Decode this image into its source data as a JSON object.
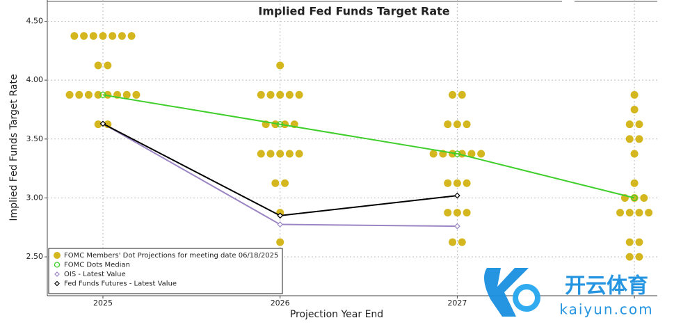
{
  "chart_data": {
    "type": "dotplot",
    "title": "Implied Fed Funds Target Rate",
    "x_label": "Projection Year End",
    "y_label": "Implied Fed Funds Target Rate",
    "categories": [
      "2025",
      "2026",
      "2027",
      null
    ],
    "ylim": [
      2.17,
      4.68
    ],
    "yticks": [
      {
        "value": 2.5,
        "label": "2.50"
      },
      {
        "value": 3.0,
        "label": "3.00"
      },
      {
        "value": 3.5,
        "label": "3.50"
      },
      {
        "value": 4.0,
        "label": "4.00"
      },
      {
        "value": 4.5,
        "label": "4.50"
      }
    ],
    "grid": true,
    "legend": "bottom-left",
    "series": [
      {
        "name": "FOMC Members' Dot Projections for meeting date 06/18/2025",
        "color": "#d4b61e",
        "marker": "dot",
        "values": [
          [
            4.375,
            4.375,
            4.375,
            4.375,
            4.375,
            4.375,
            4.375,
            4.125,
            4.125,
            3.875,
            3.875,
            3.875,
            3.875,
            3.875,
            3.875,
            3.875,
            3.875,
            3.625,
            3.625
          ],
          [
            4.125,
            3.875,
            3.875,
            3.875,
            3.875,
            3.875,
            3.625,
            3.625,
            3.625,
            3.625,
            3.375,
            3.375,
            3.375,
            3.375,
            3.375,
            3.125,
            3.125,
            2.875,
            2.625
          ],
          [
            3.875,
            3.875,
            3.625,
            3.625,
            3.625,
            3.375,
            3.375,
            3.375,
            3.375,
            3.375,
            3.375,
            3.125,
            3.125,
            3.125,
            2.875,
            2.875,
            2.875,
            2.625,
            2.625
          ],
          [
            3.875,
            3.75,
            3.625,
            3.625,
            3.5,
            3.5,
            3.375,
            3.125,
            3.0,
            3.0,
            3.0,
            2.875,
            2.875,
            2.875,
            2.875,
            2.625,
            2.625,
            2.5,
            2.5
          ]
        ]
      },
      {
        "name": "FOMC Dots Median",
        "color": "#3fcf2a",
        "marker": "circle",
        "values": [
          3.875,
          3.625,
          3.375,
          3.0
        ]
      },
      {
        "name": "OIS - Latest Value",
        "color": "#9b85c4",
        "marker": "diamond",
        "values": [
          3.63,
          2.775,
          2.76,
          null
        ]
      },
      {
        "name": "Fed Funds Futures - Latest Value",
        "color": "#000000",
        "marker": "diamond",
        "values": [
          3.63,
          2.85,
          3.02,
          null
        ]
      }
    ]
  },
  "watermark": {
    "brand": "开云体育",
    "site": "kaiyun.com"
  }
}
